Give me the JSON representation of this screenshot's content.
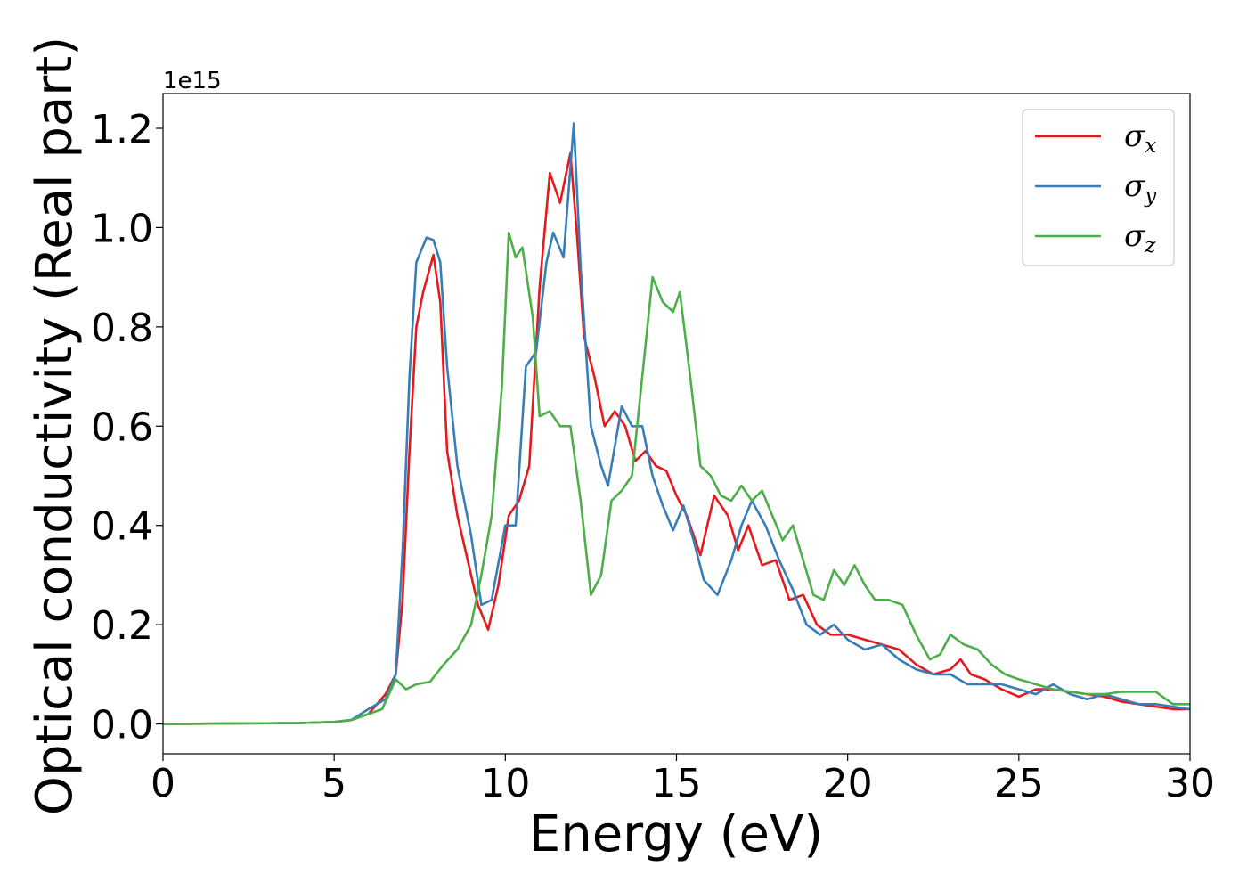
{
  "chart_data": {
    "type": "line",
    "xlabel": "Energy (eV)",
    "ylabel": "Optical conductivity (Real part)",
    "y_offset_label": "1e15",
    "xlim": [
      0,
      30
    ],
    "ylim": [
      -0.06,
      1.27
    ],
    "x_ticks": [
      0,
      5,
      10,
      15,
      20,
      25,
      30
    ],
    "x_tick_labels": [
      "0",
      "5",
      "10",
      "15",
      "20",
      "25",
      "30"
    ],
    "y_ticks": [
      0.0,
      0.2,
      0.4,
      0.6,
      0.8,
      1.0,
      1.2
    ],
    "y_tick_labels": [
      "0.0",
      "0.2",
      "0.4",
      "0.6",
      "0.8",
      "1.0",
      "1.2"
    ],
    "grid": false,
    "legend_position": "top-right",
    "series": [
      {
        "name": "σx",
        "legend_base": "σ",
        "legend_sub": "x",
        "color": "#e41a1c",
        "points": [
          [
            0,
            0
          ],
          [
            2,
            0.001
          ],
          [
            4,
            0.002
          ],
          [
            5,
            0.004
          ],
          [
            5.5,
            0.008
          ],
          [
            6,
            0.02
          ],
          [
            6.5,
            0.06
          ],
          [
            6.8,
            0.1
          ],
          [
            7,
            0.25
          ],
          [
            7.2,
            0.55
          ],
          [
            7.4,
            0.8
          ],
          [
            7.6,
            0.87
          ],
          [
            7.9,
            0.945
          ],
          [
            8.1,
            0.85
          ],
          [
            8.3,
            0.55
          ],
          [
            8.6,
            0.42
          ],
          [
            9,
            0.3
          ],
          [
            9.2,
            0.24
          ],
          [
            9.5,
            0.19
          ],
          [
            9.8,
            0.28
          ],
          [
            10.1,
            0.42
          ],
          [
            10.4,
            0.45
          ],
          [
            10.7,
            0.52
          ],
          [
            11,
            0.88
          ],
          [
            11.3,
            1.11
          ],
          [
            11.6,
            1.05
          ],
          [
            11.9,
            1.15
          ],
          [
            12.1,
            0.98
          ],
          [
            12.3,
            0.78
          ],
          [
            12.6,
            0.7
          ],
          [
            12.9,
            0.6
          ],
          [
            13.2,
            0.63
          ],
          [
            13.5,
            0.6
          ],
          [
            13.8,
            0.53
          ],
          [
            14.1,
            0.55
          ],
          [
            14.4,
            0.52
          ],
          [
            14.7,
            0.51
          ],
          [
            15,
            0.46
          ],
          [
            15.3,
            0.42
          ],
          [
            15.7,
            0.34
          ],
          [
            16.1,
            0.46
          ],
          [
            16.5,
            0.42
          ],
          [
            16.8,
            0.35
          ],
          [
            17.1,
            0.4
          ],
          [
            17.5,
            0.32
          ],
          [
            17.9,
            0.33
          ],
          [
            18.3,
            0.25
          ],
          [
            18.7,
            0.26
          ],
          [
            19.1,
            0.2
          ],
          [
            19.5,
            0.18
          ],
          [
            20,
            0.18
          ],
          [
            20.5,
            0.17
          ],
          [
            21,
            0.16
          ],
          [
            21.5,
            0.15
          ],
          [
            22,
            0.12
          ],
          [
            22.5,
            0.1
          ],
          [
            23,
            0.11
          ],
          [
            23.3,
            0.13
          ],
          [
            23.6,
            0.1
          ],
          [
            24,
            0.09
          ],
          [
            24.5,
            0.07
          ],
          [
            25,
            0.055
          ],
          [
            25.5,
            0.07
          ],
          [
            26,
            0.07
          ],
          [
            26.5,
            0.065
          ],
          [
            27,
            0.06
          ],
          [
            27.5,
            0.055
          ],
          [
            28,
            0.045
          ],
          [
            28.5,
            0.04
          ],
          [
            29,
            0.035
          ],
          [
            29.5,
            0.03
          ],
          [
            30,
            0.03
          ]
        ]
      },
      {
        "name": "σy",
        "legend_base": "σ",
        "legend_sub": "y",
        "color": "#377eb8",
        "points": [
          [
            0,
            0
          ],
          [
            2,
            0.001
          ],
          [
            4,
            0.002
          ],
          [
            5,
            0.004
          ],
          [
            5.5,
            0.008
          ],
          [
            6,
            0.03
          ],
          [
            6.5,
            0.05
          ],
          [
            6.8,
            0.1
          ],
          [
            7,
            0.35
          ],
          [
            7.2,
            0.7
          ],
          [
            7.4,
            0.93
          ],
          [
            7.7,
            0.98
          ],
          [
            7.9,
            0.975
          ],
          [
            8.1,
            0.93
          ],
          [
            8.3,
            0.72
          ],
          [
            8.6,
            0.52
          ],
          [
            9,
            0.38
          ],
          [
            9.3,
            0.24
          ],
          [
            9.6,
            0.25
          ],
          [
            10,
            0.4
          ],
          [
            10.3,
            0.4
          ],
          [
            10.6,
            0.72
          ],
          [
            10.9,
            0.75
          ],
          [
            11.2,
            0.93
          ],
          [
            11.4,
            0.99
          ],
          [
            11.7,
            0.94
          ],
          [
            12,
            1.21
          ],
          [
            12.2,
            0.92
          ],
          [
            12.5,
            0.6
          ],
          [
            12.8,
            0.52
          ],
          [
            13,
            0.48
          ],
          [
            13.4,
            0.64
          ],
          [
            13.7,
            0.6
          ],
          [
            14,
            0.6
          ],
          [
            14.3,
            0.5
          ],
          [
            14.6,
            0.44
          ],
          [
            14.9,
            0.39
          ],
          [
            15.2,
            0.44
          ],
          [
            15.5,
            0.37
          ],
          [
            15.8,
            0.29
          ],
          [
            16.2,
            0.26
          ],
          [
            16.6,
            0.33
          ],
          [
            16.9,
            0.4
          ],
          [
            17.2,
            0.45
          ],
          [
            17.6,
            0.4
          ],
          [
            18,
            0.33
          ],
          [
            18.4,
            0.27
          ],
          [
            18.8,
            0.2
          ],
          [
            19.2,
            0.18
          ],
          [
            19.6,
            0.2
          ],
          [
            20,
            0.17
          ],
          [
            20.5,
            0.15
          ],
          [
            21,
            0.16
          ],
          [
            21.5,
            0.13
          ],
          [
            22,
            0.11
          ],
          [
            22.5,
            0.1
          ],
          [
            23,
            0.1
          ],
          [
            23.5,
            0.08
          ],
          [
            24,
            0.08
          ],
          [
            24.5,
            0.08
          ],
          [
            25,
            0.07
          ],
          [
            25.5,
            0.06
          ],
          [
            26,
            0.08
          ],
          [
            26.5,
            0.06
          ],
          [
            27,
            0.05
          ],
          [
            27.5,
            0.06
          ],
          [
            28,
            0.05
          ],
          [
            28.5,
            0.04
          ],
          [
            29,
            0.04
          ],
          [
            29.5,
            0.035
          ],
          [
            30,
            0.03
          ]
        ]
      },
      {
        "name": "σz",
        "legend_base": "σ",
        "legend_sub": "z",
        "color": "#4daf4a",
        "points": [
          [
            0,
            0
          ],
          [
            2,
            0.001
          ],
          [
            4,
            0.002
          ],
          [
            5,
            0.004
          ],
          [
            5.5,
            0.008
          ],
          [
            6,
            0.02
          ],
          [
            6.4,
            0.03
          ],
          [
            6.8,
            0.09
          ],
          [
            7.1,
            0.07
          ],
          [
            7.4,
            0.08
          ],
          [
            7.8,
            0.085
          ],
          [
            8.2,
            0.12
          ],
          [
            8.6,
            0.15
          ],
          [
            9,
            0.2
          ],
          [
            9.3,
            0.3
          ],
          [
            9.6,
            0.42
          ],
          [
            9.9,
            0.68
          ],
          [
            10.1,
            0.99
          ],
          [
            10.3,
            0.94
          ],
          [
            10.5,
            0.96
          ],
          [
            10.8,
            0.82
          ],
          [
            11,
            0.62
          ],
          [
            11.3,
            0.63
          ],
          [
            11.6,
            0.6
          ],
          [
            11.9,
            0.6
          ],
          [
            12.2,
            0.45
          ],
          [
            12.5,
            0.26
          ],
          [
            12.8,
            0.3
          ],
          [
            13.1,
            0.45
          ],
          [
            13.4,
            0.47
          ],
          [
            13.7,
            0.5
          ],
          [
            14,
            0.7
          ],
          [
            14.3,
            0.9
          ],
          [
            14.6,
            0.85
          ],
          [
            14.9,
            0.83
          ],
          [
            15.1,
            0.87
          ],
          [
            15.4,
            0.7
          ],
          [
            15.7,
            0.52
          ],
          [
            16,
            0.5
          ],
          [
            16.3,
            0.46
          ],
          [
            16.6,
            0.45
          ],
          [
            16.9,
            0.48
          ],
          [
            17.2,
            0.45
          ],
          [
            17.5,
            0.47
          ],
          [
            17.8,
            0.42
          ],
          [
            18.1,
            0.37
          ],
          [
            18.4,
            0.4
          ],
          [
            18.7,
            0.33
          ],
          [
            19,
            0.26
          ],
          [
            19.3,
            0.25
          ],
          [
            19.6,
            0.31
          ],
          [
            19.9,
            0.28
          ],
          [
            20.2,
            0.32
          ],
          [
            20.5,
            0.28
          ],
          [
            20.8,
            0.25
          ],
          [
            21.2,
            0.25
          ],
          [
            21.6,
            0.24
          ],
          [
            22,
            0.18
          ],
          [
            22.4,
            0.13
          ],
          [
            22.7,
            0.14
          ],
          [
            23,
            0.18
          ],
          [
            23.4,
            0.16
          ],
          [
            23.8,
            0.15
          ],
          [
            24.2,
            0.12
          ],
          [
            24.6,
            0.1
          ],
          [
            25,
            0.09
          ],
          [
            25.5,
            0.08
          ],
          [
            26,
            0.07
          ],
          [
            26.5,
            0.065
          ],
          [
            27,
            0.06
          ],
          [
            27.5,
            0.06
          ],
          [
            28,
            0.065
          ],
          [
            28.5,
            0.065
          ],
          [
            29,
            0.065
          ],
          [
            29.5,
            0.04
          ],
          [
            30,
            0.04
          ]
        ]
      }
    ]
  }
}
